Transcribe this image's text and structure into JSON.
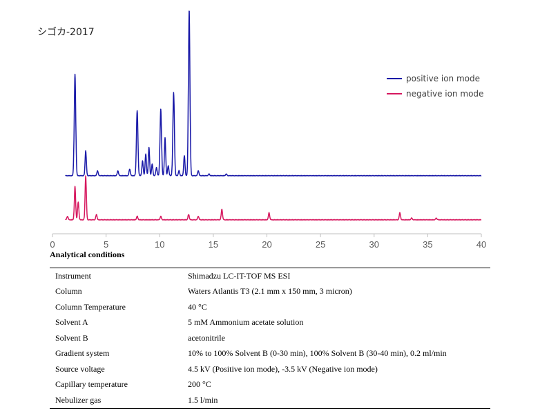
{
  "chart_data": {
    "type": "line",
    "title": "シゴカ-2017",
    "xlim": [
      0,
      40
    ],
    "x_ticks": [
      0,
      5,
      10,
      15,
      20,
      25,
      30,
      35,
      40
    ],
    "grid": false,
    "legend_position": "top-right",
    "series": [
      {
        "name": "positive ion mode",
        "color": "#1a1aa8",
        "baseline": 0,
        "peaks": [
          {
            "x": 2.1,
            "y": 61
          },
          {
            "x": 3.1,
            "y": 15
          },
          {
            "x": 4.2,
            "y": 3
          },
          {
            "x": 6.1,
            "y": 3
          },
          {
            "x": 7.2,
            "y": 4
          },
          {
            "x": 7.9,
            "y": 39
          },
          {
            "x": 8.4,
            "y": 9
          },
          {
            "x": 8.7,
            "y": 13
          },
          {
            "x": 9.0,
            "y": 17
          },
          {
            "x": 9.3,
            "y": 7
          },
          {
            "x": 9.7,
            "y": 5
          },
          {
            "x": 10.1,
            "y": 40
          },
          {
            "x": 10.5,
            "y": 23
          },
          {
            "x": 10.8,
            "y": 6
          },
          {
            "x": 11.3,
            "y": 50
          },
          {
            "x": 11.8,
            "y": 3
          },
          {
            "x": 12.3,
            "y": 12
          },
          {
            "x": 12.75,
            "y": 100
          },
          {
            "x": 13.6,
            "y": 3
          },
          {
            "x": 14.6,
            "y": 1
          },
          {
            "x": 16.2,
            "y": 1
          }
        ]
      },
      {
        "name": "negative ion mode",
        "color": "#d6175e",
        "baseline": 0,
        "peaks": [
          {
            "x": 1.4,
            "y": 2
          },
          {
            "x": 2.1,
            "y": 19
          },
          {
            "x": 2.4,
            "y": 10
          },
          {
            "x": 3.1,
            "y": 25
          },
          {
            "x": 4.1,
            "y": 3
          },
          {
            "x": 7.9,
            "y": 2
          },
          {
            "x": 10.1,
            "y": 2
          },
          {
            "x": 12.7,
            "y": 3
          },
          {
            "x": 13.6,
            "y": 2
          },
          {
            "x": 15.8,
            "y": 6
          },
          {
            "x": 20.2,
            "y": 4
          },
          {
            "x": 32.4,
            "y": 4
          },
          {
            "x": 33.5,
            "y": 1
          },
          {
            "x": 35.8,
            "y": 1
          }
        ]
      }
    ]
  },
  "table": {
    "heading": "Analytical conditions",
    "rows": [
      {
        "label": "Instrument",
        "value": "Shimadzu LC-IT-TOF MS ESI"
      },
      {
        "label": "Column",
        "value": "Waters Atlantis T3 (2.1 mm x 150 mm, 3 micron)"
      },
      {
        "label": "Column Temperature",
        "value": "40 °C"
      },
      {
        "label": "Solvent A",
        "value": "5 mM Ammonium acetate solution"
      },
      {
        "label": "Solvent B",
        "value": "acetonitrile"
      },
      {
        "label": "Gradient system",
        "value": "10% to 100% Solvent B (0-30 min), 100% Solvent B (30-40 min), 0.2 ml/min"
      },
      {
        "label": "Source voltage",
        "value": "4.5 kV (Positive ion mode), -3.5 kV (Negative ion mode)"
      },
      {
        "label": "Capillary temperature",
        "value": "200 °C"
      },
      {
        "label": "Nebulizer gas",
        "value": "1.5 l/min"
      }
    ]
  }
}
